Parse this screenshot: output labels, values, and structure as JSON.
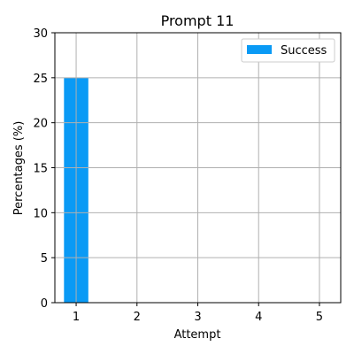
{
  "chart_data": {
    "type": "bar",
    "title": "Prompt 11",
    "xlabel": "Attempt",
    "ylabel": "Percentages (%)",
    "x": [
      1,
      2,
      3,
      4,
      5
    ],
    "xlim": [
      0.65,
      5.35
    ],
    "ylim": [
      0,
      30
    ],
    "yticks": [
      0,
      5,
      10,
      15,
      20,
      25,
      30
    ],
    "grid": true,
    "legend_position": "top-right",
    "series": [
      {
        "name": "Success",
        "color": "#0a9af5",
        "x": [
          1
        ],
        "values": [
          25
        ]
      }
    ]
  }
}
